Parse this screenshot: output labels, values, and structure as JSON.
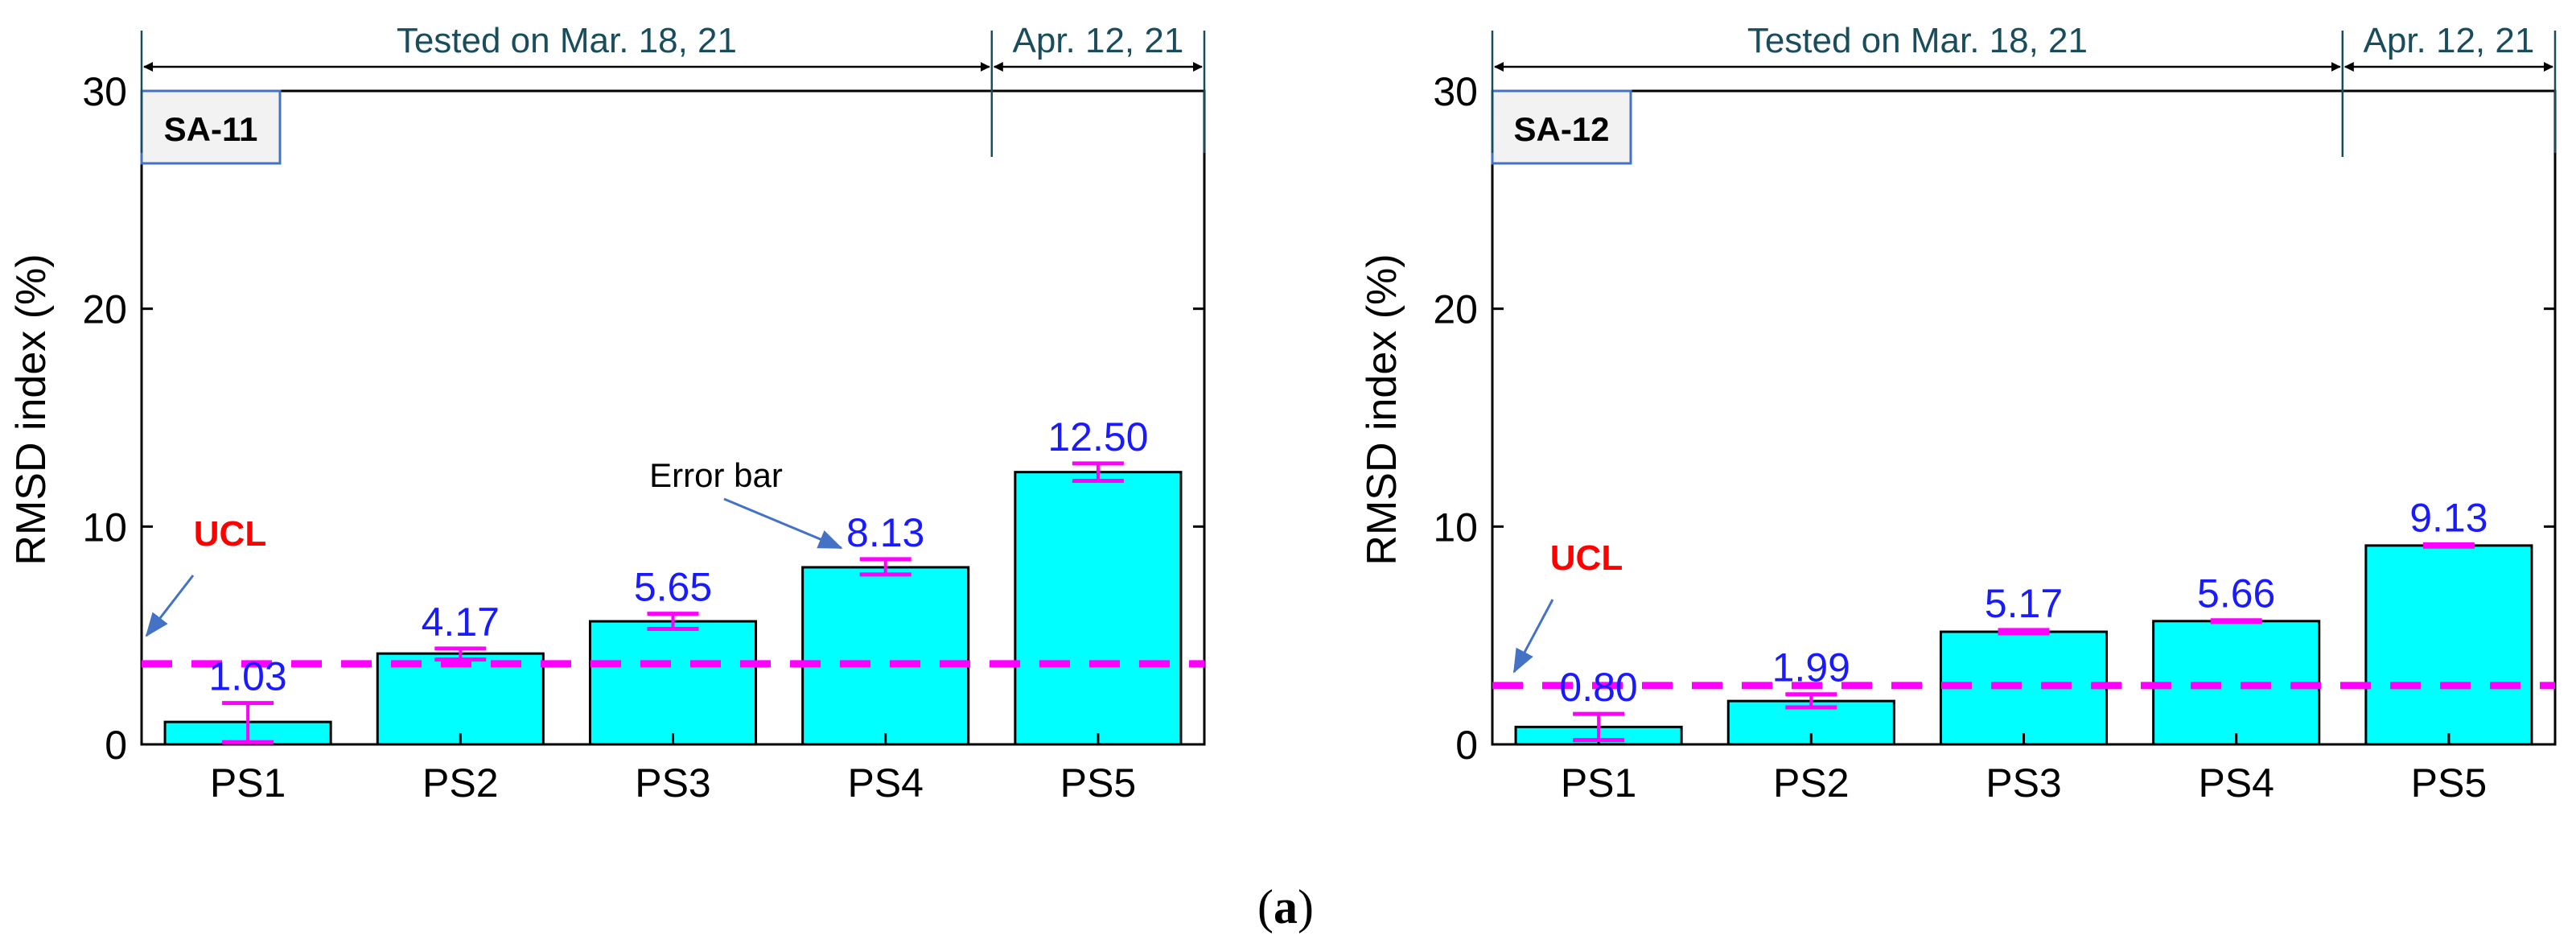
{
  "figure": {
    "caption_prefix": "(",
    "caption_letter": "a",
    "caption_suffix": ")"
  },
  "colors": {
    "bar": "#00ffff",
    "value_label": "#1a1aff",
    "ucl_line": "#ff00ff",
    "ucl_label": "#ff0000",
    "error_bar": "#ff00ff",
    "annotation": "#1a4d5c",
    "arrow": "#4472c4"
  },
  "chart_data": [
    {
      "type": "bar",
      "panel_label": "SA-11",
      "ylabel": "RMSD index (%)",
      "xlabel": "",
      "ylim": [
        0,
        30
      ],
      "yticks": [
        "0",
        "10",
        "20",
        "30"
      ],
      "categories": [
        "PS1",
        "PS2",
        "PS3",
        "PS4",
        "PS5"
      ],
      "values": [
        1.03,
        4.17,
        5.65,
        8.13,
        12.5
      ],
      "value_labels": [
        "1.03",
        "4.17",
        "5.65",
        "8.13",
        "12.50"
      ],
      "error_bars": [
        [
          0.1,
          1.9
        ],
        [
          3.9,
          4.4
        ],
        [
          5.3,
          6.0
        ],
        [
          7.8,
          8.5
        ],
        [
          12.1,
          12.9
        ]
      ],
      "ucl": {
        "label": "UCL",
        "value": 3.7
      },
      "annotation": {
        "text": "Error bar",
        "target": "PS4"
      },
      "test_periods": [
        {
          "label": "Tested on Mar. 18, 21",
          "categories": [
            "PS1",
            "PS2",
            "PS3",
            "PS4"
          ]
        },
        {
          "label": "Apr. 12, 21",
          "categories": [
            "PS5"
          ]
        }
      ]
    },
    {
      "type": "bar",
      "panel_label": "SA-12",
      "ylabel": "RMSD index (%)",
      "xlabel": "",
      "ylim": [
        0,
        30
      ],
      "yticks": [
        "0",
        "10",
        "20",
        "30"
      ],
      "categories": [
        "PS1",
        "PS2",
        "PS3",
        "PS4",
        "PS5"
      ],
      "values": [
        0.8,
        1.99,
        5.17,
        5.66,
        9.13
      ],
      "value_labels": [
        "0.80",
        "1.99",
        "5.17",
        "5.66",
        "9.13"
      ],
      "error_bars": [
        [
          0.2,
          1.4
        ],
        [
          1.7,
          2.3
        ],
        [
          5.1,
          5.25
        ],
        [
          5.62,
          5.7
        ],
        [
          9.08,
          9.18
        ]
      ],
      "ucl": {
        "label": "UCL",
        "value": 2.7
      },
      "test_periods": [
        {
          "label": "Tested on Mar. 18, 21",
          "categories": [
            "PS1",
            "PS2",
            "PS3",
            "PS4"
          ]
        },
        {
          "label": "Apr. 12, 21",
          "categories": [
            "PS5"
          ]
        }
      ]
    }
  ]
}
